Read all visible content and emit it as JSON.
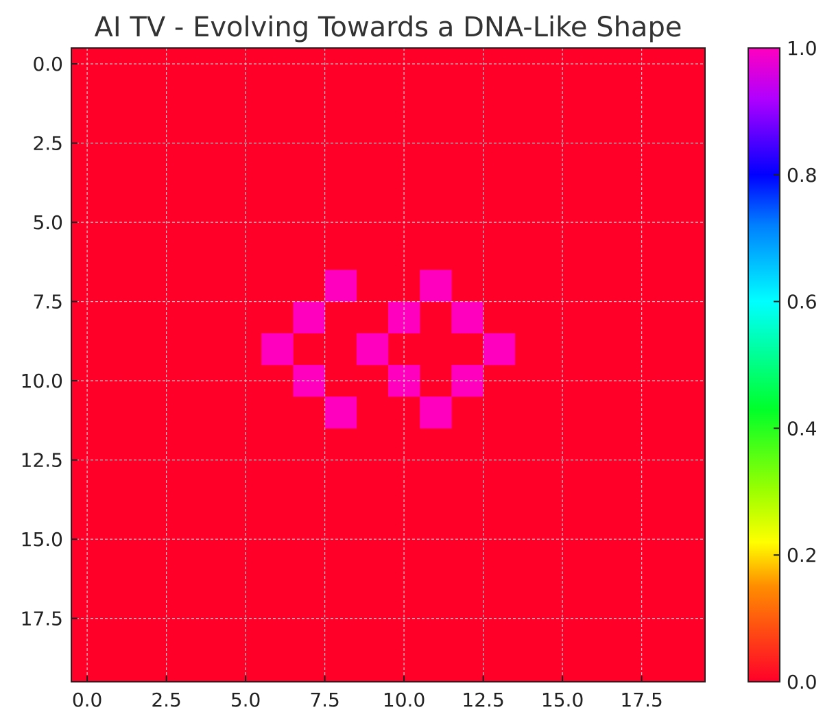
{
  "chart_data": {
    "type": "heatmap",
    "title": "AI TV - Evolving Towards a DNA-Like Shape",
    "xlabel": "",
    "ylabel": "",
    "rows": 20,
    "cols": 20,
    "xlim": [
      -0.5,
      19.5
    ],
    "ylim": [
      19.5,
      -0.5
    ],
    "x_ticks": [
      0.0,
      2.5,
      5.0,
      7.5,
      10.0,
      12.5,
      15.0,
      17.5
    ],
    "x_tick_labels": [
      "0.0",
      "2.5",
      "5.0",
      "7.5",
      "10.0",
      "12.5",
      "15.0",
      "17.5"
    ],
    "y_ticks": [
      0.0,
      2.5,
      5.0,
      7.5,
      10.0,
      12.5,
      15.0,
      17.5
    ],
    "y_tick_labels": [
      "0.0",
      "2.5",
      "5.0",
      "7.5",
      "10.0",
      "12.5",
      "15.0",
      "17.5"
    ],
    "grid": true,
    "default_value": 0.0,
    "active_value": 1.0,
    "active_cells": [
      {
        "row": 7,
        "col": 8
      },
      {
        "row": 7,
        "col": 11
      },
      {
        "row": 8,
        "col": 7
      },
      {
        "row": 8,
        "col": 10
      },
      {
        "row": 8,
        "col": 12
      },
      {
        "row": 9,
        "col": 6
      },
      {
        "row": 9,
        "col": 9
      },
      {
        "row": 9,
        "col": 13
      },
      {
        "row": 10,
        "col": 7
      },
      {
        "row": 10,
        "col": 10
      },
      {
        "row": 10,
        "col": 12
      },
      {
        "row": 11,
        "col": 8
      },
      {
        "row": 11,
        "col": 11
      }
    ],
    "colormap": "gist_rainbow",
    "colorbar": {
      "range": [
        0.0,
        1.0
      ],
      "ticks": [
        0.0,
        0.2,
        0.4,
        0.6,
        0.8,
        1.0
      ],
      "tick_labels": [
        "0.0",
        "0.2",
        "0.4",
        "0.6",
        "0.8",
        "1.0"
      ],
      "stops": [
        {
          "value": 0.0,
          "color": "#ff0029"
        },
        {
          "value": 0.15,
          "color": "#ff8c00"
        },
        {
          "value": 0.22,
          "color": "#ffff00"
        },
        {
          "value": 0.3,
          "color": "#9dff00"
        },
        {
          "value": 0.43,
          "color": "#00ff2a"
        },
        {
          "value": 0.6,
          "color": "#00ffff"
        },
        {
          "value": 0.72,
          "color": "#0080ff"
        },
        {
          "value": 0.8,
          "color": "#0000ff"
        },
        {
          "value": 0.92,
          "color": "#b000ff"
        },
        {
          "value": 1.0,
          "color": "#ff00bf"
        }
      ]
    },
    "colors": {
      "low": "#ff0029",
      "high": "#ff00bf",
      "grid": "#cccccc",
      "axis": "#222222"
    }
  }
}
